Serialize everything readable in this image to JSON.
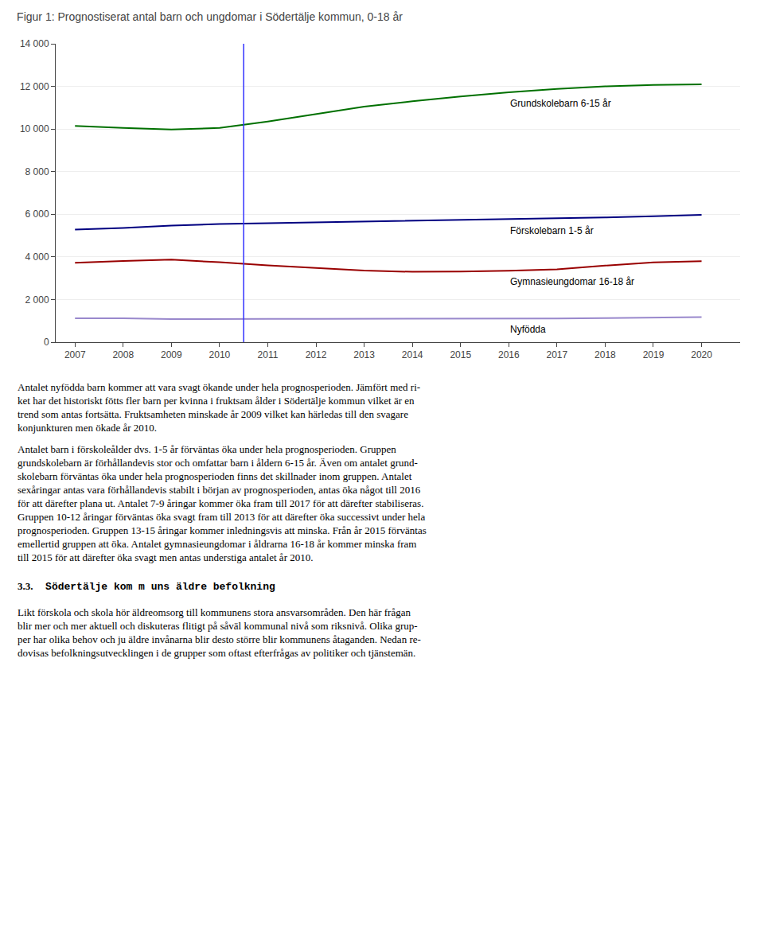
{
  "chart_data": {
    "type": "line",
    "title": "Figur 1: Prognostiserat antal barn och ungdomar i Södertälje kommun, 0-18 år",
    "x": [
      2007,
      2008,
      2009,
      2010,
      2011,
      2012,
      2013,
      2014,
      2015,
      2016,
      2017,
      2018,
      2019,
      2020
    ],
    "series": [
      {
        "name": "Grundskolebarn 6-15 år",
        "color": "#007000",
        "values": [
          10150,
          10050,
          9980,
          10050,
          10350,
          10700,
          11050,
          11300,
          11530,
          11720,
          11880,
          12000,
          12070,
          12100
        ]
      },
      {
        "name": "Förskolebarn 1-5 år",
        "color": "#000080",
        "values": [
          5280,
          5360,
          5470,
          5540,
          5580,
          5620,
          5660,
          5700,
          5730,
          5760,
          5800,
          5850,
          5910,
          5970
        ]
      },
      {
        "name": "Gymnasieungdomar 16-18 år",
        "color": "#990000",
        "values": [
          3720,
          3810,
          3870,
          3750,
          3600,
          3480,
          3360,
          3300,
          3310,
          3350,
          3420,
          3590,
          3740,
          3800
        ]
      },
      {
        "name": "Nyfödda",
        "color": "#9988CC",
        "values": [
          1120,
          1120,
          1080,
          1100,
          1095,
          1090,
          1090,
          1090,
          1095,
          1105,
          1115,
          1125,
          1140,
          1175
        ]
      }
    ],
    "vlines": [
      {
        "x": 2010.5,
        "color": "#3333FF"
      }
    ],
    "xlim": [
      2006.6,
      2020.8
    ],
    "xticks": [
      2007,
      2008,
      2009,
      2010,
      2011,
      2012,
      2013,
      2014,
      2015,
      2016,
      2017,
      2018,
      2019,
      2020
    ],
    "ylim": [
      0,
      14000
    ],
    "yticks": [
      0,
      {
        "value": 2000,
        "label": "2 000"
      },
      {
        "value": 4000,
        "label": "4 000"
      },
      {
        "value": 6000,
        "label": "6 000"
      },
      {
        "value": 8000,
        "label": "8 000"
      },
      {
        "value": 10000,
        "label": "10 000"
      },
      {
        "value": 12000,
        "label": "12 000"
      },
      {
        "value": 14000,
        "label": "14 000"
      }
    ],
    "grid": "y"
  },
  "text_blocks": [
    {
      "lines": [
        "Antalet nyfödda barn kommer att vara svagt ökande under hela prognosperioden. Jämfört med ri-",
        "ket har det historiskt fötts fler barn per kvinna i fruktsam ålder i Södertälje kommun vilket är en",
        "trend som antas fortsätta. Fruktsamheten minskade år 2009 vilket kan härledas till den svagare",
        "konjunkturen men ökade år 2010."
      ]
    },
    {
      "lines": [
        "Antalet barn i förskoleålder dvs. 1-5 år förväntas öka under hela prognosperioden. Gruppen",
        "grundskolebarn är förhållandevis stor och omfattar barn i åldern 6-15 år. Även om antalet grund-",
        "skolebarn förväntas öka under hela prognosperioden finns det skillnader inom gruppen. Antalet",
        "sexåringar antas vara förhållandevis stabilt i början av prognosperioden, antas öka något till 2016",
        "för att därefter plana ut. Antalet 7-9 åringar kommer öka fram till 2017 för att därefter stabiliseras.",
        "Gruppen 10-12 åringar förväntas öka svagt fram till 2013 för att därefter öka successivt under hela",
        "prognosperioden. Gruppen 13-15 åringar kommer inledningsvis att minska. Från år 2015 förväntas",
        "emellertid gruppen att öka. Antalet gymnasieungdomar i åldrarna 16-18 år kommer minska fram",
        "till 2015 för att därefter öka svagt men antas understiga antalet år 2010."
      ]
    },
    {
      "heading": [
        "3.3.",
        "  Södertälje kom m uns äldre befolkning"
      ]
    },
    {
      "lines": [
        "Likt förskola och skola hör äldreomsorg till kommunens stora ansvarsområden. Den här frågan",
        "blir mer och mer aktuell och diskuteras flitigt på såväl kommunal nivå som riksnivå. Olika grup-",
        "per har olika behov och ju äldre invånarna blir desto större blir kommunens åtaganden. Nedan re-",
        "dovisas befolkningsutvecklingen i de grupper som oftast efterfrågas av politiker och tjänstemän."
      ]
    }
  ]
}
